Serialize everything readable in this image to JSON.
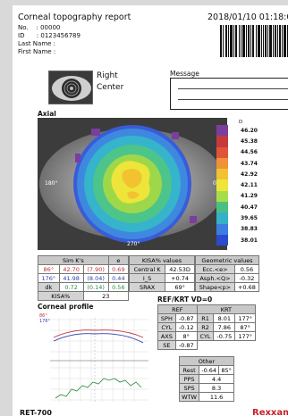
{
  "report": {
    "title": "Corneal topography report",
    "datetime": "2018/01/10 01:18:0",
    "no_line": "No.    : 00000",
    "id_line": "ID      : 0123456789",
    "last_name": "Last Name :",
    "first_name": "First Name :"
  },
  "eye": {
    "side": "Right",
    "position": "Center"
  },
  "message": {
    "label": "Message"
  },
  "axial": {
    "label": "Axial",
    "scale_header": "D",
    "scale": [
      {
        "value": "46.20",
        "color": "#7a3f9e"
      },
      {
        "value": "45.38",
        "color": "#c43a3a"
      },
      {
        "value": "44.56",
        "color": "#e0543a"
      },
      {
        "value": "43.74",
        "color": "#f0923a"
      },
      {
        "value": "42.92",
        "color": "#f2c230"
      },
      {
        "value": "42.11",
        "color": "#eee53a"
      },
      {
        "value": "41.29",
        "color": "#a8dd4a"
      },
      {
        "value": "40.47",
        "color": "#4ac080"
      },
      {
        "value": "39.65",
        "color": "#34b0c8"
      },
      {
        "value": "38.83",
        "color": "#3c7ee0"
      },
      {
        "value": "38.01",
        "color": "#2c4ad0"
      }
    ],
    "axis_left": "180°",
    "axis_right": "0°",
    "axis_bottom": "270°"
  },
  "simk": {
    "header": [
      "Sim K's",
      "e"
    ],
    "rows": [
      [
        "86°",
        "42.70",
        "(7.90)",
        "0.69"
      ],
      [
        "176°",
        "41.98",
        "(8.04)",
        "0.44"
      ],
      [
        "dk",
        "0.72",
        "(0.14)",
        "0.56"
      ]
    ],
    "kisa_label": "KISA%",
    "kisa_value": "23"
  },
  "kisa_values": {
    "header": "KISA% values",
    "rows": [
      [
        "Central K",
        "42.53D"
      ],
      [
        "I_S",
        "+0.74"
      ],
      [
        "SRAX",
        "69°"
      ]
    ]
  },
  "geometric": {
    "header": "Geometric values",
    "rows": [
      [
        "Ecc.<e>",
        "0.56"
      ],
      [
        "Asph.<Q>",
        "-0.32"
      ],
      [
        "Shape<p>",
        "+0.68"
      ]
    ]
  },
  "refkrt": {
    "title": "REF/KRT   VD=0",
    "ref_header": "REF",
    "krt_header": "KRT",
    "rows": [
      [
        "SPH",
        "-0.87",
        "R1",
        "8.01",
        "177°"
      ],
      [
        "CYL",
        "-0.12",
        "R2",
        "7.86",
        "87°"
      ],
      [
        "AXS",
        "8°",
        "CYL",
        "-0.75",
        "177°"
      ],
      [
        "SE",
        "-0.87",
        "",
        "",
        ""
      ]
    ],
    "other_header": "Other",
    "other": [
      [
        "Rest",
        "-0.64",
        "85°"
      ],
      [
        "PPS",
        "4.4",
        ""
      ],
      [
        "SPS",
        "8.3",
        ""
      ],
      [
        "WTW",
        "11.6",
        ""
      ]
    ]
  },
  "profile": {
    "label": "Corneal profile",
    "legend_a": "86°",
    "legend_b": "176°"
  },
  "footer": {
    "model": "RET-700",
    "brand": "Rexxam"
  }
}
